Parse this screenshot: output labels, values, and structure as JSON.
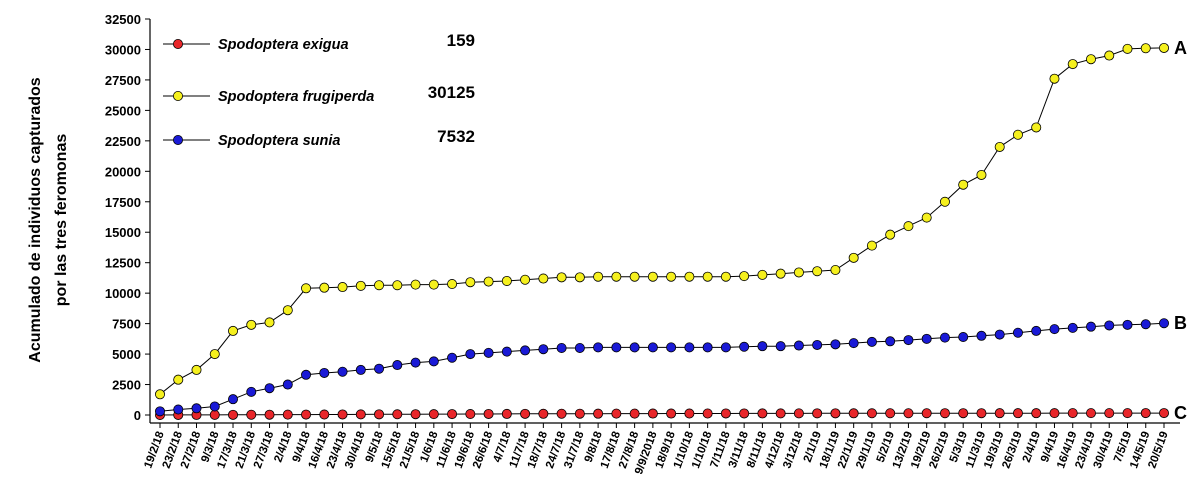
{
  "chart_data": {
    "type": "line",
    "y_label_lines": [
      "Acumulado de individuos capturados",
      "por las tres feromonas"
    ],
    "categories": [
      "19/2/18",
      "23/2/18",
      "27/2/18",
      "9/3/18",
      "17/3/18",
      "21/3/18",
      "27/3/18",
      "2/4/18",
      "9/4/18",
      "16/4/18",
      "23/4/18",
      "30/4/18",
      "9/5/18",
      "15/5/18",
      "21/5/18",
      "1/6/18",
      "11/6/18",
      "19/6/18",
      "26/6/18",
      "4/7/18",
      "11/7/18",
      "18/7/18",
      "24/7/18",
      "31/7/18",
      "9/8/18",
      "17/8/18",
      "27/8/18",
      "9/9/2018",
      "18/9/18",
      "1/10/18",
      "1/10/18",
      "7/11/18",
      "3/11/18",
      "8/11/18",
      "4/12/18",
      "3/12/18",
      "2/1/19",
      "18/1/19",
      "22/1/19",
      "29/1/19",
      "5/2/19",
      "13/2/19",
      "19/2/19",
      "26/2/19",
      "5/3/19",
      "11/3/19",
      "19/3/19",
      "26/3/19",
      "2/4/19",
      "9/4/19",
      "16/4/19",
      "23/4/19",
      "30/4/19",
      "7/5/19",
      "14/5/19",
      "20/5/19"
    ],
    "series": [
      {
        "name": "Spodoptera exigua",
        "total": 159,
        "end_label": "C",
        "color": "#e8262a",
        "values": [
          2,
          5,
          8,
          12,
          15,
          20,
          25,
          30,
          35,
          40,
          45,
          50,
          55,
          60,
          65,
          70,
          75,
          80,
          85,
          90,
          95,
          100,
          103,
          106,
          109,
          112,
          115,
          118,
          120,
          122,
          124,
          126,
          128,
          130,
          132,
          134,
          136,
          138,
          140,
          142,
          143,
          144,
          145,
          146,
          147,
          148,
          149,
          150,
          151,
          152,
          153,
          154,
          155,
          156,
          158,
          159
        ]
      },
      {
        "name": "Spodoptera frugiperda",
        "total": 30125,
        "end_label": "A",
        "color": "#f5f01e",
        "values": [
          1700,
          2900,
          3700,
          5000,
          6900,
          7400,
          7600,
          8600,
          10400,
          10450,
          10500,
          10600,
          10650,
          10650,
          10700,
          10700,
          10750,
          10900,
          10950,
          11000,
          11100,
          11200,
          11300,
          11300,
          11350,
          11350,
          11350,
          11350,
          11350,
          11350,
          11350,
          11350,
          11400,
          11500,
          11600,
          11700,
          11800,
          11900,
          12900,
          13900,
          14800,
          15500,
          16200,
          17500,
          18900,
          19700,
          22000,
          23000,
          23600,
          27600,
          28800,
          29200,
          29500,
          30050,
          30100,
          30125
        ]
      },
      {
        "name": "Spodoptera sunia",
        "total": 7532,
        "end_label": "B",
        "color": "#1a1ad6",
        "values": [
          300,
          450,
          550,
          700,
          1300,
          1900,
          2200,
          2500,
          3300,
          3450,
          3550,
          3700,
          3800,
          4100,
          4300,
          4400,
          4700,
          5000,
          5100,
          5200,
          5300,
          5400,
          5500,
          5500,
          5550,
          5550,
          5550,
          5550,
          5550,
          5550,
          5550,
          5550,
          5600,
          5650,
          5650,
          5700,
          5750,
          5800,
          5900,
          6000,
          6050,
          6150,
          6250,
          6350,
          6400,
          6500,
          6600,
          6750,
          6900,
          7050,
          7150,
          7250,
          7350,
          7400,
          7450,
          7532
        ]
      }
    ],
    "ylim": [
      0,
      32500
    ],
    "yticks": [
      0,
      2500,
      5000,
      7500,
      10000,
      12500,
      15000,
      17500,
      20000,
      22500,
      25000,
      27500,
      30000,
      32500
    ]
  }
}
